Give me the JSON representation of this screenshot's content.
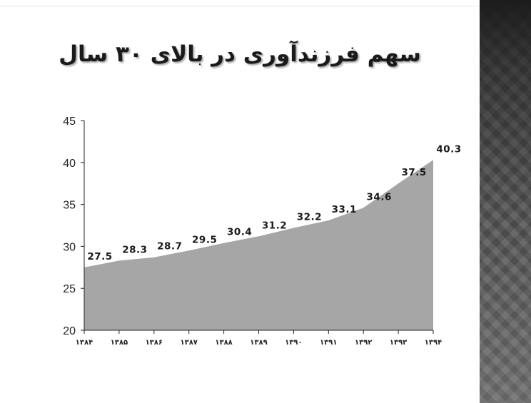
{
  "slide": {
    "title": "سهم فرزندآوری در بالای ۳۰ سال"
  },
  "chart_data": {
    "type": "area",
    "title": "سهم فرزندآوری در بالای ۳۰ سال",
    "xlabel": "",
    "ylabel": "",
    "categories": [
      "۱۳۸۴",
      "۱۳۸۵",
      "۱۳۸۶",
      "۱۳۸۷",
      "۱۳۸۸",
      "۱۳۸۹",
      "۱۳۹۰",
      "۱۳۹۱",
      "۱۳۹۲",
      "۱۳۹۳",
      "۱۳۹۴"
    ],
    "values": [
      27.5,
      28.3,
      28.7,
      29.5,
      30.4,
      31.2,
      32.2,
      33.1,
      34.6,
      37.5,
      40.3
    ],
    "ylim": [
      20,
      45
    ],
    "yticks": [
      20,
      25,
      30,
      35,
      40,
      45
    ],
    "grid": false,
    "legend": "none",
    "fill_color": "#a6a6a6"
  }
}
